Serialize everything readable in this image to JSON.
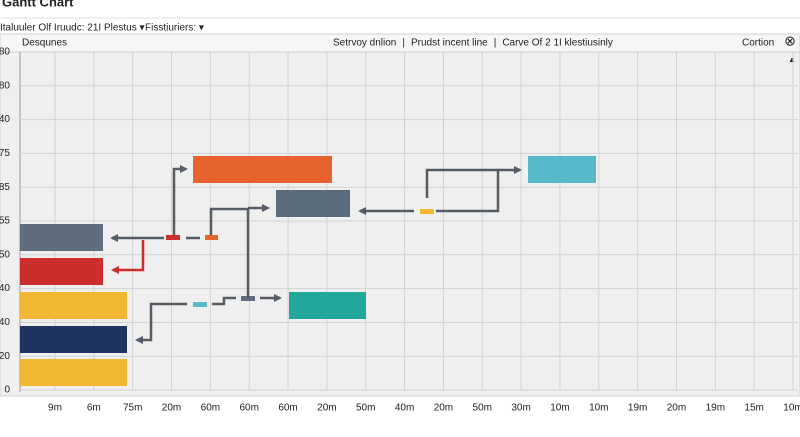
{
  "header": {
    "title": "Gantt Chart",
    "toolbar": [
      "Italuuler Olf Iruudc: 21I Plestus ▾",
      "Fisstiuriers: ▾"
    ]
  },
  "panel": {
    "left_label": "Desqunes",
    "center_items": [
      "Setrvoy dnlion",
      "Prudst incent line",
      "Carve  Of  2  1I  klestiusinly"
    ],
    "separator": "|",
    "right_label": "Cortion",
    "close": "⊗",
    "scroll": "▲"
  },
  "y_labels": [
    "80",
    "80",
    "40",
    "75",
    "85",
    "55",
    "50",
    "40",
    "40",
    "20",
    "0"
  ],
  "x_labels": [
    "9m",
    "6m",
    "75m",
    "20m",
    "60m",
    "60m",
    "60m",
    "20m",
    "50m",
    "40m",
    "20m",
    "50m",
    "30m",
    "10m",
    "10m",
    "19m",
    "20m",
    "19m",
    "15m",
    "10m"
  ]
}
